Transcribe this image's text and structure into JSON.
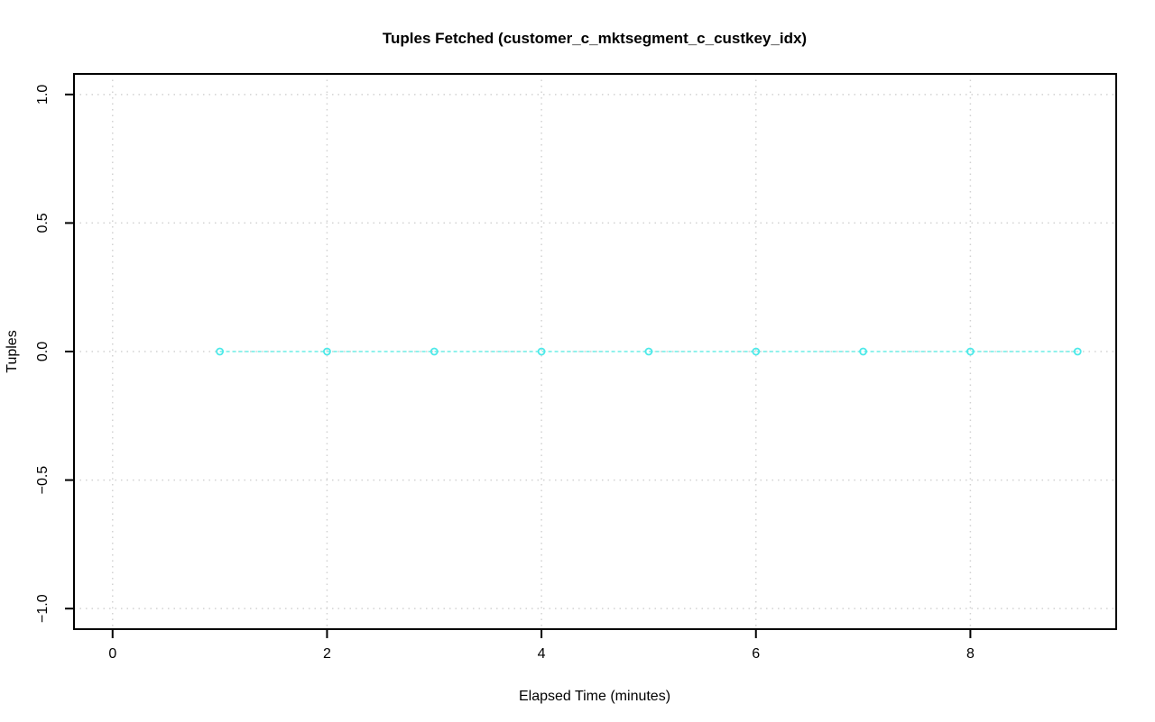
{
  "chart_data": {
    "type": "line",
    "title": "Tuples Fetched (customer_c_mktsegment_c_custkey_idx)",
    "xlabel": "Elapsed Time (minutes)",
    "ylabel": "Tuples",
    "x": [
      1,
      2,
      3,
      4,
      5,
      6,
      7,
      8,
      9
    ],
    "y": [
      0,
      0,
      0,
      0,
      0,
      0,
      0,
      0,
      0
    ],
    "xticks": {
      "values": [
        0,
        2,
        4,
        6,
        8
      ],
      "labels": [
        "0",
        "2",
        "4",
        "6",
        "8"
      ]
    },
    "yticks": {
      "values": [
        -1.0,
        -0.5,
        0.0,
        0.5,
        1.0
      ],
      "labels": [
        "−1.0",
        "−0.5",
        "0.0",
        "0.5",
        "1.0"
      ]
    },
    "xlim": [
      -0.36,
      9.36
    ],
    "ylim": [
      -1.08,
      1.08
    ],
    "grid": "dotted",
    "legend": "none",
    "marker": "open-circle",
    "line_style": "dashed",
    "colors": {
      "marker_stroke": "#4DE9E9",
      "line_stroke": "#90F2EC",
      "grid": "#D2D2D2",
      "axis": "#000000",
      "background": "#FFFFFF"
    }
  }
}
